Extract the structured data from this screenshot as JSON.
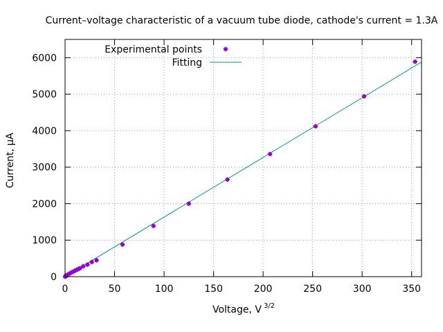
{
  "chart_data": {
    "type": "scatter",
    "title": "Current–voltage characteristic of a vacuum tube diode, cathode's current = 1.3A",
    "xlabel": "Voltage, V",
    "xlabel_sup": "3/2",
    "ylabel": "Current, µA",
    "xlim": [
      0,
      360
    ],
    "ylim": [
      0,
      6500
    ],
    "xticks": [
      0,
      50,
      100,
      150,
      200,
      250,
      300,
      350
    ],
    "yticks": [
      0,
      1000,
      2000,
      3000,
      4000,
      5000,
      6000
    ],
    "grid": true,
    "legend_position": "top-right",
    "series": [
      {
        "name": "Experimental points",
        "kind": "points",
        "color": "#9400d3",
        "x": [
          0.0,
          0.5,
          1.0,
          1.8,
          2.8,
          4.0,
          5.2,
          6.5,
          8.0,
          9.5,
          11.2,
          13.0,
          15.0,
          18.4,
          22.6,
          27.0,
          31.8,
          58.0,
          89.3,
          125.0,
          164.0,
          207.0,
          253.0,
          302.0,
          353.5
        ],
        "y": [
          0,
          10,
          25,
          40,
          55,
          75,
          95,
          115,
          135,
          155,
          180,
          205,
          230,
          285,
          330,
          400,
          450,
          880,
          1390,
          2000,
          2660,
          3360,
          4120,
          4940,
          5890
        ]
      },
      {
        "name": "Fitting",
        "kind": "line",
        "color": "#009e73",
        "x": [
          0,
          360
        ],
        "y": [
          0,
          5880
        ]
      }
    ]
  }
}
